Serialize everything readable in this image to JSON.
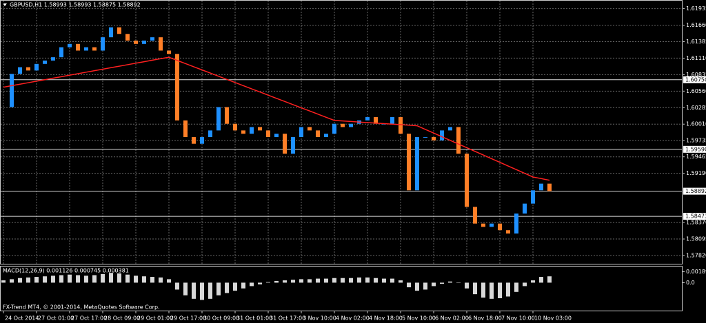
{
  "chart_data": [
    {
      "type": "candlestick",
      "title": "GBPUSD,H1  1.58993 1.58993 1.58875 1.58892",
      "categories": [
        "24 Oct 2014",
        null,
        null,
        null,
        "27 Oct 01:00",
        null,
        null,
        null,
        "27 Oct 17:00",
        null,
        null,
        null,
        "28 Oct 09:00",
        null,
        null,
        null,
        "29 Oct 01:00",
        null,
        null,
        null,
        "29 Oct 17:00",
        null,
        null,
        null,
        "30 Oct 09:00",
        null,
        null,
        null,
        "31 Oct 01:00",
        null,
        null,
        null,
        "31 Oct 17:00",
        null,
        null,
        null,
        "3 Nov 10:00",
        null,
        null,
        null,
        "4 Nov 02:00",
        null,
        null,
        null,
        "4 Nov 18:00",
        null,
        null,
        null,
        "5 Nov 10:00",
        null,
        null,
        null,
        "6 Nov 02:00",
        null,
        null,
        null,
        "6 Nov 18:00",
        null,
        null,
        null,
        "7 Nov 10:00",
        null,
        null,
        null,
        "10 Nov 03:00",
        null,
        null
      ],
      "series": [
        {
          "name": "GBPUSD",
          "up_color": "#1e90ff",
          "down_color": "#ff7f27",
          "values": [
            1.60294,
            1.60848,
            1.60959,
            1.60904,
            1.61014,
            1.6107,
            1.61125,
            1.61292,
            1.61347,
            1.61236,
            1.61292,
            1.61236,
            1.61458,
            1.61624,
            1.61514,
            1.61403,
            1.61347,
            1.61403,
            1.61458,
            1.61236,
            1.61181,
            1.60072,
            1.59794,
            1.59683,
            1.59794,
            1.59905,
            1.60294,
            1.60016,
            1.59905,
            1.5985,
            1.59961,
            1.59905,
            1.59794,
            1.5985,
            1.59517,
            1.59794,
            1.59961,
            1.59905,
            1.59794,
            1.5985,
            1.60016,
            1.59961,
            1.60016,
            1.60072,
            1.60127,
            1.60016,
            1.60016,
            1.60127,
            1.5985,
            1.58907,
            1.59794,
            1.59794,
            1.59739,
            1.59905,
            1.59961,
            1.59517,
            1.5863,
            1.58352,
            1.58297,
            1.58352,
            1.58242,
            1.58186,
            1.58519,
            1.58685,
            1.58907,
            1.59018,
            1.58892
          ]
        },
        {
          "name": "MA",
          "color": "#ff2020",
          "values": [
            1.60626,
            1.60651,
            1.60676,
            1.60701,
            1.60726,
            1.60751,
            1.60776,
            1.60801,
            1.60826,
            1.60851,
            1.60876,
            1.60901,
            1.60926,
            1.60951,
            1.60976,
            1.61001,
            1.61026,
            1.61051,
            1.61076,
            1.61101,
            1.61125,
            1.61072,
            1.6102,
            1.60967,
            1.60914,
            1.60862,
            1.60809,
            1.60756,
            1.60704,
            1.60651,
            1.60598,
            1.60546,
            1.60493,
            1.6044,
            1.60388,
            1.60335,
            1.60282,
            1.6023,
            1.60177,
            1.60124,
            1.60072,
            1.60063,
            1.60054,
            1.60045,
            1.60036,
            1.60027,
            1.60019,
            1.6001,
            1.60001,
            1.59992,
            1.59983,
            1.59922,
            1.59861,
            1.598,
            1.59739,
            1.59678,
            1.59617,
            1.59556,
            1.59495,
            1.59434,
            1.59373,
            1.59312,
            1.59251,
            1.5919,
            1.59129,
            1.59102,
            1.59074
          ]
        }
      ],
      "ylim": [
        1.57682,
        1.62068
      ],
      "yticks": [
        {
          "value": 1.61935,
          "label": "1.61935"
        },
        {
          "value": 1.6166,
          "label": "1.61660"
        },
        {
          "value": 1.61385,
          "label": "1.61385"
        },
        {
          "value": 1.6111,
          "label": "1.61110"
        },
        {
          "value": 1.60835,
          "label": "1.60835"
        },
        {
          "value": 1.6056,
          "label": "1.60560"
        },
        {
          "value": 1.60285,
          "label": "1.60285"
        },
        {
          "value": 1.6001,
          "label": "1.60010"
        },
        {
          "value": 1.59735,
          "label": "1.59735"
        },
        {
          "value": 1.59465,
          "label": "1.59465"
        },
        {
          "value": 1.5919,
          "label": "1.59190"
        },
        {
          "value": 1.5837,
          "label": "1.58370"
        },
        {
          "value": 1.58095,
          "label": "1.58095"
        },
        {
          "value": 1.5782,
          "label": "1.57820"
        }
      ],
      "levels": [
        {
          "value": 1.6075,
          "label": "1.60750"
        },
        {
          "value": 1.5959,
          "label": "1.59590"
        },
        {
          "value": 1.58892,
          "label": "1.58892"
        },
        {
          "value": 1.58473,
          "label": "1.58473"
        }
      ],
      "grid": true
    },
    {
      "type": "bar",
      "title": "MACD(12,26,9) 0.001126 0.000745 0.000381",
      "color": "#d8d8d8",
      "values": [
        0.0004,
        0.0006,
        0.0008,
        0.0009,
        0.001,
        0.0011,
        0.0012,
        0.0013,
        0.0014,
        0.0013,
        0.0012,
        0.0013,
        0.0015,
        0.0017,
        0.0016,
        0.0014,
        0.0012,
        0.0011,
        0.001,
        0.0009,
        0.0006,
        -0.0012,
        -0.0022,
        -0.0028,
        -0.003,
        -0.0028,
        -0.0022,
        -0.0018,
        -0.0014,
        -0.001,
        -0.0006,
        -0.0003,
        0.0001,
        0.0003,
        0.0004,
        0.0005,
        0.0006,
        0.0006,
        0.0007,
        0.0007,
        0.0008,
        0.0008,
        0.0008,
        0.0009,
        0.0009,
        0.0008,
        0.0007,
        0.0007,
        0.0004,
        -0.0008,
        -0.0014,
        -0.0012,
        -0.0006,
        -0.0002,
        0.0002,
        0,
        -0.001,
        -0.002,
        -0.0026,
        -0.0028,
        -0.0027,
        -0.0024,
        -0.0016,
        -0.0006,
        0.0004,
        0.001,
        0.0011
      ],
      "ylim": [
        -0.00485,
        0.0028
      ],
      "yticks": [
        0.001894,
        {
          "value": 0,
          "label": "0.0"
        }
      ],
      "footer": "FX-Trend MT4, © 2001-2014, MetaQuotes Software Corp."
    }
  ]
}
